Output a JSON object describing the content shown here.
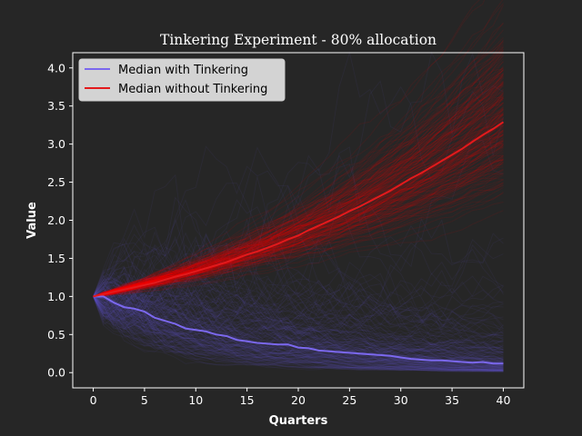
{
  "chart_data": {
    "type": "line",
    "title": "Tinkering Experiment - 80% allocation",
    "xlabel": "Quarters",
    "ylabel": "Value",
    "xlim": [
      -2,
      42
    ],
    "ylim": [
      -0.2,
      4.2
    ],
    "xticks": [
      0,
      5,
      10,
      15,
      20,
      25,
      30,
      35,
      40
    ],
    "xtick_labels": [
      "0",
      "5",
      "10",
      "15",
      "20",
      "25",
      "30",
      "35",
      "40"
    ],
    "yticks": [
      0.0,
      0.5,
      1.0,
      1.5,
      2.0,
      2.5,
      3.0,
      3.5,
      4.0
    ],
    "ytick_labels": [
      "0.0",
      "0.5",
      "1.0",
      "1.5",
      "2.0",
      "2.5",
      "3.0",
      "3.5",
      "4.0"
    ],
    "grid": false,
    "legend_position": "top-left",
    "x": [
      0,
      1,
      2,
      3,
      4,
      5,
      6,
      7,
      8,
      9,
      10,
      11,
      12,
      13,
      14,
      15,
      16,
      17,
      18,
      19,
      20,
      21,
      22,
      23,
      24,
      25,
      26,
      27,
      28,
      29,
      30,
      31,
      32,
      33,
      34,
      35,
      36,
      37,
      38,
      39,
      40
    ],
    "series": [
      {
        "name": "Median with Tinkering",
        "color": "#7b68ee",
        "values": [
          1.0,
          1.0,
          0.92,
          0.86,
          0.84,
          0.8,
          0.72,
          0.68,
          0.64,
          0.58,
          0.56,
          0.54,
          0.5,
          0.48,
          0.43,
          0.41,
          0.39,
          0.38,
          0.37,
          0.37,
          0.33,
          0.32,
          0.29,
          0.28,
          0.27,
          0.26,
          0.25,
          0.24,
          0.23,
          0.22,
          0.2,
          0.18,
          0.17,
          0.16,
          0.16,
          0.15,
          0.14,
          0.13,
          0.14,
          0.12,
          0.12
        ]
      },
      {
        "name": "Median without Tinkering",
        "color": "#e31a1c",
        "values": [
          1.0,
          1.03,
          1.06,
          1.09,
          1.12,
          1.15,
          1.18,
          1.22,
          1.26,
          1.29,
          1.33,
          1.37,
          1.41,
          1.45,
          1.5,
          1.55,
          1.59,
          1.64,
          1.69,
          1.75,
          1.8,
          1.87,
          1.93,
          1.99,
          2.05,
          2.12,
          2.18,
          2.25,
          2.32,
          2.39,
          2.47,
          2.55,
          2.62,
          2.7,
          2.78,
          2.86,
          2.94,
          3.03,
          3.12,
          3.2,
          3.29
        ]
      }
    ],
    "background_paths": {
      "with_tinkering": {
        "count": 200,
        "color": "#6a5acd",
        "description_of_spread": "low"
      },
      "without_tinkering": {
        "count": 200,
        "color": "#ff0000",
        "description_of_spread": "low"
      }
    }
  }
}
